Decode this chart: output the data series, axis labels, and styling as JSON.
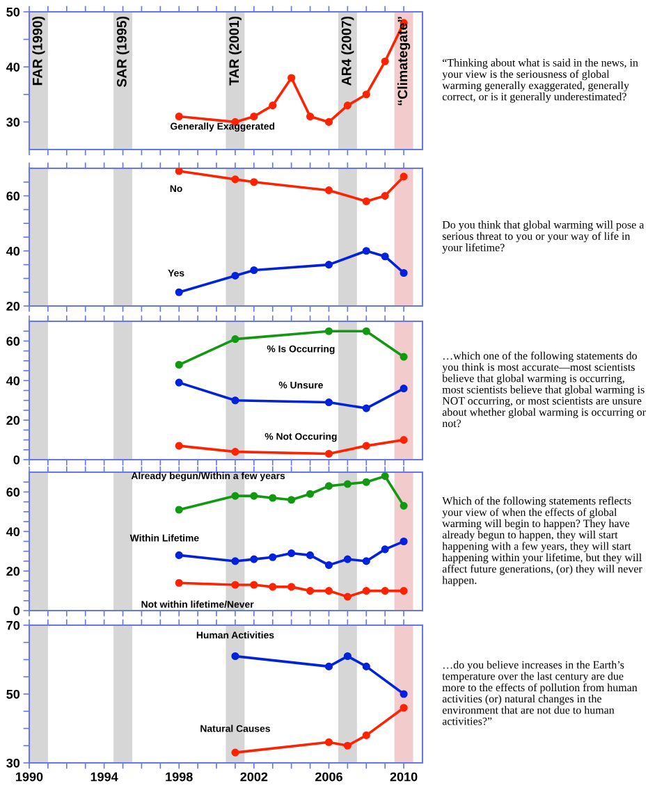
{
  "chart_data": [
    {
      "type": "line",
      "x": [
        1998,
        2001,
        2002,
        2003,
        2004,
        2005,
        2006,
        2007,
        2008,
        2009,
        2010
      ],
      "series": [
        {
          "name": "Generally Exaggerated",
          "color": "#ff2200",
          "values": [
            31,
            30,
            31,
            33,
            38,
            31,
            30,
            33,
            35,
            41,
            48
          ]
        }
      ],
      "xlim": [
        1990,
        2011
      ],
      "xticks": [
        1990,
        {
          "value": 1991,
          "label": null
        },
        {
          "value": 1992,
          "label": null
        },
        {
          "value": 1993,
          "label": null
        },
        1994,
        {
          "value": 1995,
          "label": null
        },
        {
          "value": 1996,
          "label": null
        },
        {
          "value": 1997,
          "label": null
        },
        1998,
        {
          "value": 1999,
          "label": null
        },
        {
          "value": 2000,
          "label": null
        },
        {
          "value": 2001,
          "label": null
        },
        2002,
        {
          "value": 2003,
          "label": null
        },
        {
          "value": 2004,
          "label": null
        },
        {
          "value": 2005,
          "label": null
        },
        2006,
        {
          "value": 2007,
          "label": null
        },
        {
          "value": 2008,
          "label": null
        },
        {
          "value": 2009,
          "label": null
        },
        2010
      ],
      "ylim": [
        25,
        50
      ],
      "yticks": [
        30,
        {
          "value": 35,
          "label": null
        },
        40,
        {
          "value": 45,
          "label": null
        },
        50
      ],
      "tick_labels": "y",
      "marker": "circle",
      "line_style": "solid",
      "grid": false,
      "legend": false,
      "bands": [
        {
          "axis": "x",
          "from": 1990,
          "to": 1991,
          "label": "FAR (1990)",
          "color": "#d6d6d6"
        },
        {
          "axis": "x",
          "from": 1994.5,
          "to": 1995.5,
          "label": "SAR (1995)",
          "color": "#d6d6d6"
        },
        {
          "axis": "x",
          "from": 2000.5,
          "to": 2001.5,
          "label": "TAR (2001)",
          "color": "#d6d6d6"
        },
        {
          "axis": "x",
          "from": 2006.5,
          "to": 2007.5,
          "label": "AR4 (2007)",
          "color": "#d6d6d6"
        },
        {
          "axis": "x",
          "from": 2009.5,
          "to": 2010.5,
          "label": "“Climategate”",
          "color": "#f2cccc"
        }
      ],
      "annotations": [
        "“Thinking about what is said in the news, in your view is the seriousness of global warming generally exaggerated, generally correct, or is it generally underestimated?"
      ]
    },
    {
      "type": "line",
      "series": [
        {
          "name": "No",
          "color": "#ff2200",
          "x": [
            1998,
            2001,
            2002,
            2006,
            2008,
            2009,
            2010
          ],
          "values": [
            69,
            66,
            65,
            62,
            58,
            60,
            67
          ]
        },
        {
          "name": "Yes",
          "color": "#0022dd",
          "x": [
            1998,
            2001,
            2002,
            2006,
            2008,
            2009,
            2010
          ],
          "values": [
            25,
            31,
            33,
            35,
            40,
            38,
            32
          ]
        }
      ],
      "xlim": [
        1990,
        2011
      ],
      "xticks": [
        1990,
        {
          "value": 1991,
          "label": null
        },
        {
          "value": 1992,
          "label": null
        },
        {
          "value": 1993,
          "label": null
        },
        1994,
        {
          "value": 1995,
          "label": null
        },
        {
          "value": 1996,
          "label": null
        },
        {
          "value": 1997,
          "label": null
        },
        1998,
        {
          "value": 1999,
          "label": null
        },
        {
          "value": 2000,
          "label": null
        },
        {
          "value": 2001,
          "label": null
        },
        2002,
        {
          "value": 2003,
          "label": null
        },
        {
          "value": 2004,
          "label": null
        },
        {
          "value": 2005,
          "label": null
        },
        2006,
        {
          "value": 2007,
          "label": null
        },
        {
          "value": 2008,
          "label": null
        },
        {
          "value": 2009,
          "label": null
        },
        2010
      ],
      "ylim": [
        20,
        70
      ],
      "yticks": [
        20,
        {
          "value": 25,
          "label": null
        },
        {
          "value": 30,
          "label": null
        },
        {
          "value": 35,
          "label": null
        },
        40,
        {
          "value": 45,
          "label": null
        },
        {
          "value": 50,
          "label": null
        },
        {
          "value": 55,
          "label": null
        },
        60,
        {
          "value": 65,
          "label": null
        }
      ],
      "tick_labels": "y",
      "marker": "circle",
      "line_style": "solid",
      "grid": false,
      "legend": false,
      "bands": [
        {
          "axis": "x",
          "from": 1990,
          "to": 1991,
          "color": "#d6d6d6"
        },
        {
          "axis": "x",
          "from": 1994.5,
          "to": 1995.5,
          "color": "#d6d6d6"
        },
        {
          "axis": "x",
          "from": 2000.5,
          "to": 2001.5,
          "color": "#d6d6d6"
        },
        {
          "axis": "x",
          "from": 2006.5,
          "to": 2007.5,
          "color": "#d6d6d6"
        },
        {
          "axis": "x",
          "from": 2009.5,
          "to": 2010.5,
          "color": "#f2cccc"
        }
      ],
      "annotations": [
        "Do you think that global warming will pose a serious threat to you or your way of life in your lifetime?"
      ]
    },
    {
      "type": "line",
      "series": [
        {
          "name": "% Is Occurring",
          "color": "#119911",
          "x": [
            1998,
            2001,
            2006,
            2008,
            2010
          ],
          "values": [
            48,
            61,
            65,
            65,
            52
          ]
        },
        {
          "name": "% Unsure",
          "color": "#0022dd",
          "x": [
            1998,
            2001,
            2006,
            2008,
            2010
          ],
          "values": [
            39,
            30,
            29,
            26,
            36
          ]
        },
        {
          "name": "% Not Occuring",
          "color": "#ff2200",
          "x": [
            1998,
            2001,
            2006,
            2008,
            2010
          ],
          "values": [
            7,
            4,
            3,
            7,
            10
          ]
        }
      ],
      "xlim": [
        1990,
        2011
      ],
      "xticks": [
        1990,
        {
          "value": 1991,
          "label": null
        },
        {
          "value": 1992,
          "label": null
        },
        {
          "value": 1993,
          "label": null
        },
        1994,
        {
          "value": 1995,
          "label": null
        },
        {
          "value": 1996,
          "label": null
        },
        {
          "value": 1997,
          "label": null
        },
        1998,
        {
          "value": 1999,
          "label": null
        },
        {
          "value": 2000,
          "label": null
        },
        {
          "value": 2001,
          "label": null
        },
        2002,
        {
          "value": 2003,
          "label": null
        },
        {
          "value": 2004,
          "label": null
        },
        {
          "value": 2005,
          "label": null
        },
        2006,
        {
          "value": 2007,
          "label": null
        },
        {
          "value": 2008,
          "label": null
        },
        {
          "value": 2009,
          "label": null
        },
        2010
      ],
      "ylim": [
        0,
        70
      ],
      "yticks": [
        0,
        {
          "value": 5,
          "label": null
        },
        {
          "value": 10,
          "label": null
        },
        {
          "value": 15,
          "label": null
        },
        20,
        {
          "value": 25,
          "label": null
        },
        {
          "value": 30,
          "label": null
        },
        {
          "value": 35,
          "label": null
        },
        40,
        {
          "value": 45,
          "label": null
        },
        {
          "value": 50,
          "label": null
        },
        {
          "value": 55,
          "label": null
        },
        60,
        {
          "value": 65,
          "label": null
        }
      ],
      "tick_labels": "y",
      "marker": "circle",
      "line_style": "solid",
      "grid": false,
      "legend": false,
      "bands": [
        {
          "axis": "x",
          "from": 1990,
          "to": 1991,
          "color": "#d6d6d6"
        },
        {
          "axis": "x",
          "from": 1994.5,
          "to": 1995.5,
          "color": "#d6d6d6"
        },
        {
          "axis": "x",
          "from": 2000.5,
          "to": 2001.5,
          "color": "#d6d6d6"
        },
        {
          "axis": "x",
          "from": 2006.5,
          "to": 2007.5,
          "color": "#d6d6d6"
        },
        {
          "axis": "x",
          "from": 2009.5,
          "to": 2010.5,
          "color": "#f2cccc"
        }
      ],
      "annotations": [
        "…which one of the following statements do you think is most accurate—most scientists believe that global warming is occurring, most scientists believe that global warming is NOT occurring, or most scientists are unsure about whether global warming is occurring or not?"
      ]
    },
    {
      "type": "line",
      "x": [
        1998,
        2001,
        2002,
        2003,
        2004,
        2005,
        2006,
        2007,
        2008,
        2009,
        2010
      ],
      "series": [
        {
          "name": "Already begun/Within a few years",
          "color": "#119911",
          "values": [
            51,
            58,
            58,
            57,
            56,
            59,
            63,
            64,
            65,
            68,
            53
          ]
        },
        {
          "name": "Within Lifetime",
          "color": "#0022dd",
          "values": [
            28,
            25,
            26,
            27,
            29,
            28,
            23,
            26,
            25,
            31,
            35
          ]
        },
        {
          "name": "Not within lifetime/Never",
          "color": "#ff2200",
          "values": [
            14,
            13,
            13,
            12,
            12,
            10,
            10,
            7,
            10,
            10,
            10
          ]
        }
      ],
      "xlim": [
        1990,
        2011
      ],
      "xticks": [
        1990,
        {
          "value": 1991,
          "label": null
        },
        {
          "value": 1992,
          "label": null
        },
        {
          "value": 1993,
          "label": null
        },
        1994,
        {
          "value": 1995,
          "label": null
        },
        {
          "value": 1996,
          "label": null
        },
        {
          "value": 1997,
          "label": null
        },
        1998,
        {
          "value": 1999,
          "label": null
        },
        {
          "value": 2000,
          "label": null
        },
        {
          "value": 2001,
          "label": null
        },
        2002,
        {
          "value": 2003,
          "label": null
        },
        {
          "value": 2004,
          "label": null
        },
        {
          "value": 2005,
          "label": null
        },
        2006,
        {
          "value": 2007,
          "label": null
        },
        {
          "value": 2008,
          "label": null
        },
        {
          "value": 2009,
          "label": null
        },
        2010
      ],
      "ylim": [
        0,
        70
      ],
      "yticks": [
        0,
        {
          "value": 5,
          "label": null
        },
        {
          "value": 10,
          "label": null
        },
        {
          "value": 15,
          "label": null
        },
        20,
        {
          "value": 25,
          "label": null
        },
        {
          "value": 30,
          "label": null
        },
        {
          "value": 35,
          "label": null
        },
        40,
        {
          "value": 45,
          "label": null
        },
        {
          "value": 50,
          "label": null
        },
        {
          "value": 55,
          "label": null
        },
        60,
        {
          "value": 65,
          "label": null
        }
      ],
      "tick_labels": "y",
      "marker": "circle",
      "line_style": "solid",
      "grid": false,
      "legend": false,
      "bands": [
        {
          "axis": "x",
          "from": 1990,
          "to": 1991,
          "color": "#d6d6d6"
        },
        {
          "axis": "x",
          "from": 1994.5,
          "to": 1995.5,
          "color": "#d6d6d6"
        },
        {
          "axis": "x",
          "from": 2000.5,
          "to": 2001.5,
          "color": "#d6d6d6"
        },
        {
          "axis": "x",
          "from": 2006.5,
          "to": 2007.5,
          "color": "#d6d6d6"
        },
        {
          "axis": "x",
          "from": 2009.5,
          "to": 2010.5,
          "color": "#f2cccc"
        }
      ],
      "annotations": [
        "Which of the following statements reflects your view of when the effects of global warming will begin to happen? They have already begun to happen, they will start happening with a few years, they will start happening within your lifetime, but they will affect future generations, (or) they will never happen."
      ]
    },
    {
      "type": "line",
      "series": [
        {
          "name": "Human Activities",
          "color": "#0022dd",
          "x": [
            2001,
            2006,
            2007,
            2008,
            2010
          ],
          "values": [
            61,
            58,
            61,
            58,
            50
          ]
        },
        {
          "name": "Natural Causes",
          "color": "#ff2200",
          "x": [
            2001,
            2006,
            2007,
            2008,
            2010
          ],
          "values": [
            33,
            36,
            35,
            38,
            46
          ]
        }
      ],
      "xlim": [
        1990,
        2011
      ],
      "xticks": [
        1990,
        {
          "value": 1991,
          "label": null
        },
        {
          "value": 1992,
          "label": null
        },
        {
          "value": 1993,
          "label": null
        },
        1994,
        {
          "value": 1995,
          "label": null
        },
        {
          "value": 1996,
          "label": null
        },
        {
          "value": 1997,
          "label": null
        },
        1998,
        {
          "value": 1999,
          "label": null
        },
        {
          "value": 2000,
          "label": null
        },
        {
          "value": 2001,
          "label": null
        },
        2002,
        {
          "value": 2003,
          "label": null
        },
        {
          "value": 2004,
          "label": null
        },
        {
          "value": 2005,
          "label": null
        },
        2006,
        {
          "value": 2007,
          "label": null
        },
        {
          "value": 2008,
          "label": null
        },
        {
          "value": 2009,
          "label": null
        },
        2010
      ],
      "ylim": [
        30,
        70
      ],
      "yticks": [
        30,
        {
          "value": 35,
          "label": null
        },
        {
          "value": 40,
          "label": null
        },
        {
          "value": 45,
          "label": null
        },
        50,
        {
          "value": 55,
          "label": null
        },
        {
          "value": 60,
          "label": null
        },
        {
          "value": 65,
          "label": null
        },
        70
      ],
      "marker": "circle",
      "line_style": "solid",
      "grid": false,
      "legend": false,
      "bands": [
        {
          "axis": "x",
          "from": 1990,
          "to": 1991,
          "color": "#d6d6d6"
        },
        {
          "axis": "x",
          "from": 1994.5,
          "to": 1995.5,
          "color": "#d6d6d6"
        },
        {
          "axis": "x",
          "from": 2000.5,
          "to": 2001.5,
          "color": "#d6d6d6"
        },
        {
          "axis": "x",
          "from": 2006.5,
          "to": 2007.5,
          "color": "#d6d6d6"
        },
        {
          "axis": "x",
          "from": 2009.5,
          "to": 2010.5,
          "color": "#f2cccc"
        }
      ],
      "annotations": [
        "…do you believe increases in the Earth’s temperature over the last century are due more to the effects of pollution from human activities (or) natural changes in the environment that are not due to human activities?”"
      ]
    }
  ]
}
